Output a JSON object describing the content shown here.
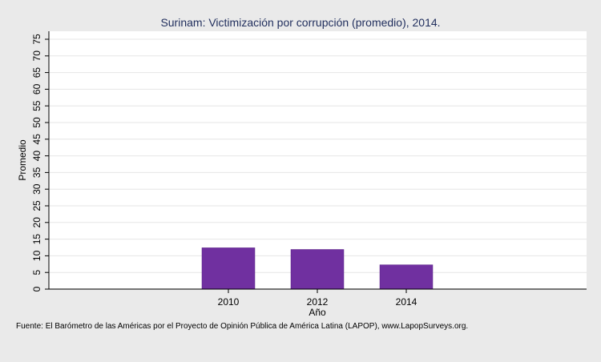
{
  "chart_data": {
    "type": "bar",
    "title": "Surinam: Victimización por corrupción (promedio), 2014.",
    "xlabel": "Año",
    "ylabel": "Promedio",
    "categories": [
      "2010",
      "2012",
      "2014"
    ],
    "values": [
      12.4,
      11.9,
      7.3
    ],
    "ylim": [
      0,
      75
    ],
    "yticks": [
      0,
      5,
      10,
      15,
      20,
      25,
      30,
      35,
      40,
      45,
      50,
      55,
      60,
      65,
      70,
      75
    ],
    "grid": true,
    "bar_color": "#7030a0",
    "source": "Fuente: El Barómetro de las Américas por el Proyecto de Opinión Pública de América Latina (LAPOP), www.LapopSurveys.org."
  }
}
